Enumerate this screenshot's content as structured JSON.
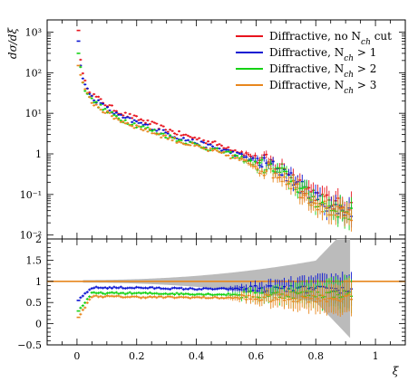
{
  "chart_data": [
    {
      "panel": "main",
      "type": "scatter",
      "ylabel": "dσ/dξ",
      "yscale": "log",
      "xlim": [
        -0.1,
        1.1
      ],
      "ylim": [
        0.008,
        2000
      ],
      "y_ticks": [
        {
          "value": 0.01,
          "label": "10⁻²"
        },
        {
          "value": 0.1,
          "label": "10⁻¹"
        },
        {
          "value": 1,
          "label": "1"
        },
        {
          "value": 10,
          "label": "10¹"
        },
        {
          "value": 100,
          "label": "10²"
        },
        {
          "value": 1000,
          "label": "10³"
        }
      ],
      "legend": {
        "position": "top-right",
        "entries": [
          {
            "text": "Diffractive, no N",
            "sub": "ch",
            "suffix": " cut",
            "color": "#e8141e"
          },
          {
            "text": "Diffractive, N",
            "sub": "ch",
            "suffix": " > 1",
            "color": "#0a14d2"
          },
          {
            "text": "Diffractive, N",
            "sub": "ch",
            "suffix": " > 2",
            "color": "#14d214"
          },
          {
            "text": "Diffractive, N",
            "sub": "ch",
            "suffix": " > 3",
            "color": "#e8871e"
          }
        ]
      },
      "series": [
        {
          "name": "Diffractive, no N_ch cut",
          "color": "#e8141e",
          "x": [
            0.005,
            0.015,
            0.025,
            0.05,
            0.1,
            0.15,
            0.2,
            0.25,
            0.3,
            0.35,
            0.4,
            0.45,
            0.5,
            0.55,
            0.6,
            0.65,
            0.7,
            0.75,
            0.8,
            0.85,
            0.9
          ],
          "y": [
            1100,
            120,
            60,
            30,
            16,
            10,
            7.5,
            5.5,
            4,
            3,
            2.4,
            1.9,
            1.5,
            1.1,
            0.8,
            0.6,
            0.4,
            0.18,
            0.1,
            0.06,
            0.05
          ]
        },
        {
          "name": "Diffractive, N_ch > 1",
          "color": "#0a14d2",
          "x": [
            0.005,
            0.015,
            0.025,
            0.05,
            0.1,
            0.15,
            0.2,
            0.25,
            0.3,
            0.35,
            0.4,
            0.45,
            0.5,
            0.55,
            0.6,
            0.65,
            0.7,
            0.75,
            0.8,
            0.85,
            0.9
          ],
          "y": [
            600,
            100,
            50,
            25,
            13,
            8,
            6,
            4.4,
            3.2,
            2.4,
            1.9,
            1.5,
            1.2,
            0.9,
            0.65,
            0.5,
            0.32,
            0.15,
            0.08,
            0.05,
            0.04
          ]
        },
        {
          "name": "Diffractive, N_ch > 2",
          "color": "#14d214",
          "x": [
            0.005,
            0.015,
            0.025,
            0.05,
            0.1,
            0.15,
            0.2,
            0.25,
            0.3,
            0.35,
            0.4,
            0.45,
            0.5,
            0.55,
            0.6,
            0.65,
            0.7,
            0.75,
            0.8,
            0.85,
            0.9
          ],
          "y": [
            300,
            85,
            42,
            21,
            11,
            7,
            5.1,
            3.8,
            2.8,
            2.1,
            1.65,
            1.3,
            1.05,
            0.78,
            0.56,
            0.43,
            0.28,
            0.13,
            0.07,
            0.045,
            0.035
          ]
        },
        {
          "name": "Diffractive, N_ch > 3",
          "color": "#e8871e",
          "x": [
            0.005,
            0.015,
            0.025,
            0.05,
            0.1,
            0.15,
            0.2,
            0.25,
            0.3,
            0.35,
            0.4,
            0.45,
            0.5,
            0.55,
            0.6,
            0.65,
            0.7,
            0.75,
            0.8,
            0.85,
            0.9
          ],
          "y": [
            150,
            75,
            37,
            19,
            10,
            6.4,
            4.7,
            3.5,
            2.6,
            1.95,
            1.5,
            1.2,
            0.95,
            0.7,
            0.5,
            0.38,
            0.25,
            0.12,
            0.065,
            0.04,
            0.03
          ]
        }
      ]
    },
    {
      "panel": "ratio",
      "type": "scatter",
      "xlabel": "ξ",
      "xlim": [
        -0.1,
        1.1
      ],
      "ylim": [
        -0.5,
        2
      ],
      "x_ticks": [
        {
          "value": 0,
          "label": "0"
        },
        {
          "value": 0.2,
          "label": "0.2"
        },
        {
          "value": 0.4,
          "label": "0.4"
        },
        {
          "value": 0.6,
          "label": "0.6"
        },
        {
          "value": 0.8,
          "label": "0.8"
        },
        {
          "value": 1,
          "label": "1"
        }
      ],
      "y_ticks": [
        {
          "value": -0.5,
          "label": "−0.5"
        },
        {
          "value": 0,
          "label": "0"
        },
        {
          "value": 0.5,
          "label": "0.5"
        },
        {
          "value": 1,
          "label": "1"
        },
        {
          "value": 1.5,
          "label": "1.5"
        },
        {
          "value": 2,
          "label": "2"
        }
      ],
      "reference": 1,
      "reference_color": "#e8871e",
      "band_color": "#bbbbbb",
      "series": [
        {
          "name": "Diffractive, no N_ch cut",
          "color": "#e8141e",
          "x": [
            0.005,
            0.05,
            0.2,
            0.4,
            0.6,
            0.8
          ],
          "y": [
            1.0,
            1.0,
            1.0,
            1.0,
            1.0,
            1.0
          ]
        },
        {
          "name": "Diffractive, N_ch > 1",
          "color": "#0a14d2",
          "x": [
            0.005,
            0.05,
            0.2,
            0.4,
            0.6,
            0.8
          ],
          "y": [
            0.55,
            0.85,
            0.85,
            0.82,
            0.82,
            0.8
          ]
        },
        {
          "name": "Diffractive, N_ch > 2",
          "color": "#14d214",
          "x": [
            0.005,
            0.05,
            0.2,
            0.4,
            0.6,
            0.8
          ],
          "y": [
            0.3,
            0.72,
            0.72,
            0.7,
            0.68,
            0.7
          ]
        },
        {
          "name": "Diffractive, N_ch > 3",
          "color": "#e8871e",
          "x": [
            0.005,
            0.05,
            0.2,
            0.4,
            0.6,
            0.8
          ],
          "y": [
            0.15,
            0.65,
            0.63,
            0.62,
            0.6,
            0.6
          ]
        }
      ]
    }
  ]
}
